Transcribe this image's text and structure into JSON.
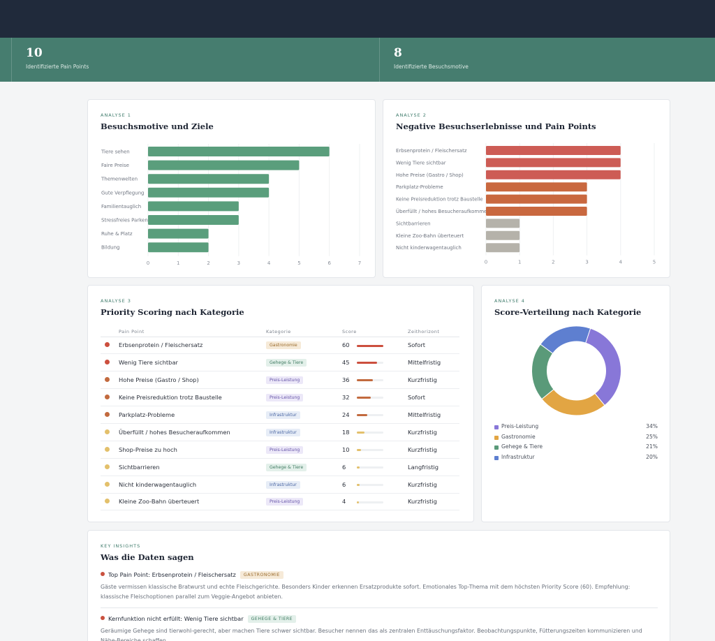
{
  "kpis": [
    {
      "value": "10",
      "label": "Identifizierte Pain Points"
    },
    {
      "value": "8",
      "label": "Identifizierte Besuchsmotive"
    }
  ],
  "analysis1": {
    "eyebrow": "Analyse 1",
    "title": "Besuchsmotive und Ziele"
  },
  "analysis2": {
    "eyebrow": "Analyse 2",
    "title": "Negative Besuchserlebnisse und Pain Points"
  },
  "analysis3": {
    "eyebrow": "Analyse 3",
    "title": "Priority Scoring nach Kategorie"
  },
  "analysis4": {
    "eyebrow": "Analyse 4",
    "title": "Score-Verteilung nach Kategorie"
  },
  "chart_data": [
    {
      "type": "bar",
      "orientation": "horizontal",
      "categories": [
        "Tiere sehen",
        "Faire Preise",
        "Themenwelten",
        "Gute Verpflegung",
        "Familientauglich",
        "Stressfreies Parken",
        "Ruhe & Platz",
        "Bildung"
      ],
      "values": [
        6,
        5,
        4,
        4,
        3,
        3,
        2,
        2
      ],
      "xlim": [
        0,
        7
      ],
      "ticks": [
        0,
        1,
        2,
        3,
        4,
        5,
        6,
        7
      ],
      "color": "#5a9e7c",
      "grid": true
    },
    {
      "type": "bar",
      "orientation": "horizontal",
      "categories": [
        "Erbsenprotein / Fleischersatz",
        "Wenig Tiere sichtbar",
        "Hohe Preise (Gastro / Shop)",
        "Parkplatz-Probleme",
        "Keine Preisreduktion trotz Baustelle",
        "Überfüllt / hohes Besucheraufkommen",
        "Sichtbarrieren",
        "Kleine Zoo-Bahn überteuert",
        "Nicht kinderwagentauglich"
      ],
      "values": [
        4,
        4,
        4,
        3,
        3,
        3,
        1,
        1,
        1
      ],
      "colors": [
        "#cd5c55",
        "#cd5c55",
        "#cd5c55",
        "#c9683f",
        "#c9683f",
        "#c9683f",
        "#b5b2aa",
        "#b5b2aa",
        "#b5b2aa"
      ],
      "xlim": [
        0,
        5
      ],
      "ticks": [
        0,
        1,
        2,
        3,
        4,
        5
      ],
      "grid": true
    },
    {
      "type": "table",
      "columns": [
        "Pain Point",
        "Kategorie",
        "Score",
        "Zeithorizont"
      ],
      "max_score": 60,
      "rows": [
        {
          "dot": "#cc4f3e",
          "name": "Erbsenprotein / Fleischersatz",
          "category": "Gastronomie",
          "score": 60,
          "horizon": "Sofort"
        },
        {
          "dot": "#cc4f3e",
          "name": "Wenig Tiere sichtbar",
          "category": "Gehege & Tiere",
          "score": 45,
          "horizon": "Mittelfristig"
        },
        {
          "dot": "#c26a3e",
          "name": "Hohe Preise (Gastro / Shop)",
          "category": "Preis-Leistung",
          "score": 36,
          "horizon": "Kurzfristig"
        },
        {
          "dot": "#c26a3e",
          "name": "Keine Preisreduktion trotz Baustelle",
          "category": "Preis-Leistung",
          "score": 32,
          "horizon": "Sofort"
        },
        {
          "dot": "#c26a3e",
          "name": "Parkplatz-Probleme",
          "category": "Infrastruktur",
          "score": 24,
          "horizon": "Mittelfristig"
        },
        {
          "dot": "#e3c06b",
          "name": "Überfüllt / hohes Besucheraufkommen",
          "category": "Infrastruktur",
          "score": 18,
          "horizon": "Kurzfristig"
        },
        {
          "dot": "#e3c06b",
          "name": "Shop-Preise zu hoch",
          "category": "Preis-Leistung",
          "score": 10,
          "horizon": "Kurzfristig"
        },
        {
          "dot": "#e3c06b",
          "name": "Sichtbarrieren",
          "category": "Gehege & Tiere",
          "score": 6,
          "horizon": "Langfristig"
        },
        {
          "dot": "#e3c06b",
          "name": "Nicht kinderwagentauglich",
          "category": "Infrastruktur",
          "score": 6,
          "horizon": "Kurzfristig"
        },
        {
          "dot": "#e3c06b",
          "name": "Kleine Zoo-Bahn überteuert",
          "category": "Preis-Leistung",
          "score": 4,
          "horizon": "Kurzfristig"
        }
      ]
    },
    {
      "type": "pie",
      "variant": "donut",
      "legend_position": "bottom",
      "slices": [
        {
          "label": "Preis-Leistung",
          "pct_label": "34%",
          "value": 34,
          "color": "#8877d8"
        },
        {
          "label": "Gastronomie",
          "pct_label": "25%",
          "value": 25,
          "color": "#e2a543"
        },
        {
          "label": "Gehege & Tiere",
          "pct_label": "21%",
          "value": 21,
          "color": "#5a9a79"
        },
        {
          "label": "Infrastruktur",
          "pct_label": "20%",
          "value": 20,
          "color": "#5e7fd0"
        }
      ]
    }
  ],
  "badge_styles": {
    "Gastronomie": {
      "bg": "#f6ead8",
      "fg": "#9a6a2b"
    },
    "Gehege & Tiere": {
      "bg": "#e3f0ea",
      "fg": "#3f7a61"
    },
    "Preis-Leistung": {
      "bg": "#ece8f8",
      "fg": "#6553a8"
    },
    "Infrastruktur": {
      "bg": "#e7edf7",
      "fg": "#4a66a3"
    }
  },
  "insights": {
    "eyebrow": "Key Insights",
    "title": "Was die Daten sagen",
    "items": [
      {
        "headline": "Top Pain Point: Erbsenprotein / Fleischersatz",
        "badge": "GASTRONOMIE",
        "badge_bg": "#f6ead8",
        "badge_fg": "#9a6a2b",
        "text": "Gäste vermissen klassische Bratwurst und echte Fleischgerichte. Besonders Kinder erkennen Ersatzprodukte sofort. Emotionales Top-Thema mit dem höchsten Priority Score (60). Empfehlung: klassische Fleischoptionen parallel zum Veggie-Angebot anbieten."
      },
      {
        "headline": "Kernfunktion nicht erfüllt: Wenig Tiere sichtbar",
        "badge": "GEHEGE & TIERE",
        "badge_bg": "#e3f0ea",
        "badge_fg": "#3f7a61",
        "text": "Geräumige Gehege sind tierwohl-gerecht, aber machen Tiere schwer sichtbar. Besucher nennen das als zentralen Enttäuschungsfaktor. Beobachtungspunkte, Fütterungszeiten kommunizieren und Nähe-Bereiche schaffen."
      }
    ]
  }
}
